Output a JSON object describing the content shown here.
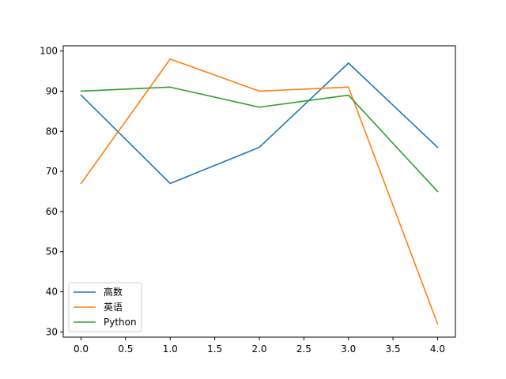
{
  "chart_data": {
    "type": "line",
    "title": "",
    "xlabel": "",
    "ylabel": "",
    "x": [
      0,
      1,
      2,
      3,
      4
    ],
    "xlim": [
      -0.2,
      4.2
    ],
    "ylim": [
      28.7,
      101.3
    ],
    "xticks": [
      "0.0",
      "0.5",
      "1.0",
      "1.5",
      "2.0",
      "2.5",
      "3.0",
      "3.5",
      "4.0"
    ],
    "yticks": [
      "30",
      "40",
      "50",
      "60",
      "70",
      "80",
      "90",
      "100"
    ],
    "grid": false,
    "legend_position": "lower-left",
    "series": [
      {
        "name": "高数",
        "color": "#1f77b4",
        "values": [
          89,
          67,
          76,
          97,
          76
        ]
      },
      {
        "name": "英语",
        "color": "#ff7f0e",
        "values": [
          67,
          98,
          90,
          91,
          32
        ]
      },
      {
        "name": "Python",
        "color": "#2ca02c",
        "values": [
          90,
          91,
          86,
          89,
          65
        ]
      }
    ]
  }
}
